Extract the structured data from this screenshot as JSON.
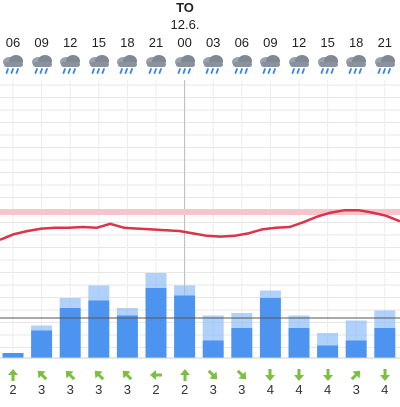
{
  "day": {
    "name": "TO",
    "date": "12.6."
  },
  "colors": {
    "precip": "#4d94f0",
    "precip_extra": "#8fbdf7",
    "temp_line": "#d9344a",
    "temp_band": "#f6c4cb",
    "wind_arrow": "#7bbf3e"
  },
  "hours": [
    "06",
    "09",
    "12",
    "15",
    "18",
    "21",
    "00",
    "03",
    "06",
    "09",
    "12",
    "15",
    "18",
    "21"
  ],
  "icons": [
    "cloud-rain-icon",
    "cloud-rain-icon",
    "cloud-rain-icon",
    "cloud-rain-icon",
    "cloud-rain-icon",
    "cloud-rain-icon",
    "cloud-rain-icon",
    "cloud-rain-icon",
    "cloud-rain-icon",
    "cloud-rain-icon",
    "cloud-rain-icon",
    "cloud-rain-icon",
    "cloud-rain-icon",
    "cloud-rain-icon"
  ],
  "precipitation": {
    "values": [
      0.1,
      0.55,
      1.0,
      1.15,
      0.85,
      1.4,
      1.25,
      0.35,
      0.6,
      1.2,
      0.6,
      0.25,
      0.35,
      0.6
    ],
    "extra": [
      0,
      0.1,
      0.2,
      0.3,
      0.15,
      0.3,
      0.2,
      0.5,
      0.3,
      0.15,
      0.25,
      0.25,
      0.4,
      0.35
    ]
  },
  "temperature": {
    "values": [
      0.2,
      0.55,
      0.75,
      0.9,
      0.95,
      0.95,
      1.0,
      0.95,
      1.2,
      0.95,
      0.9,
      0.85,
      0.8,
      0.75,
      0.6,
      0.45,
      0.4,
      0.45,
      0.6,
      0.85,
      0.95,
      1.0,
      1.3,
      1.65,
      1.9,
      2.05,
      2.05,
      1.9,
      1.7,
      1.35
    ]
  },
  "wind": {
    "speeds": [
      2,
      3,
      3,
      3,
      3,
      2,
      2,
      3,
      3,
      4,
      4,
      4,
      3,
      4
    ],
    "directions": [
      "up",
      "up-left",
      "up-left",
      "up-left",
      "up-left",
      "left",
      "up",
      "down-right",
      "down-right",
      "down",
      "down",
      "down",
      "up-right",
      "down"
    ]
  }
}
